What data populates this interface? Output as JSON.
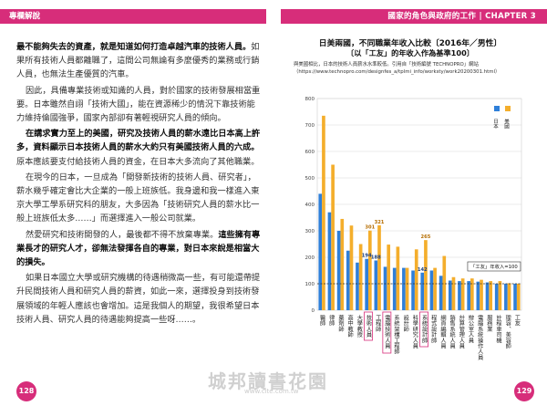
{
  "left_page": {
    "header": "專欄解說",
    "page_number": "128",
    "paragraphs": [
      {
        "indent": false,
        "segments": [
          {
            "bold": true,
            "text": "最不能夠失去的資產，就是知道如何打造卓越汽車的技術人員。"
          },
          {
            "bold": false,
            "text": "如果所有技術人員都離職了，這間公司無論有多麼優秀的業務或行銷人員，也無法生產優質的汽車。"
          }
        ]
      },
      {
        "indent": true,
        "segments": [
          {
            "bold": false,
            "text": "因此，具備專業技術或知識的人員，對於國家的技術發展相當重要。日本雖然自詡「技術大國」，能在資源稀少的情況下靠技術能力維持倫國強爭，國家內部卻有著輕視研究人員的傾向。"
          }
        ]
      },
      {
        "indent": true,
        "segments": [
          {
            "bold": true,
            "text": "在講求實力至上的美國，研究及技術人員的薪水遠比日本高上許多，資料顯示日本技術人員的薪水大約只有美國技術人員的六成。"
          },
          {
            "bold": false,
            "text": "原本應該要支付給技術人員的資金，在日本大多流向了其他職業。"
          }
        ]
      },
      {
        "indent": true,
        "segments": [
          {
            "bold": false,
            "text": "在現今的日本，一旦成為「開發新技術的技術人員、研究者」，薪水幾乎確定會比大企業的一般上班族低。我身邊和我一樣進入東京大學工學系研究科的朋友，大多因為「技術研究人員的薪水比一般上班族低太多……」而選擇進入一般公司就業。"
          }
        ]
      },
      {
        "indent": true,
        "segments": [
          {
            "bold": false,
            "text": "然愛研究和技術開發的人，最後都不得不放棄專業。"
          },
          {
            "bold": true,
            "text": "這些擁有專業長才的研究人才，卻無法發揮各自的專業，對日本來說是相當大的損失。"
          }
        ]
      },
      {
        "indent": true,
        "segments": [
          {
            "bold": false,
            "text": "如果日本國立大學或研究機構的待遇稍微高一些，有可能還帶提升民間技術人員和研究人員的薪資，如此一來，選擇投身到技術發展領域的年輕人應該也會增加。這是我個人的期望，我很希望日本技術人員、研究人員的待遇能夠提高一些呀……。"
          }
        ]
      }
    ]
  },
  "right_page": {
    "header": "國家的角色與政府的工作 | CHAPTER 3",
    "page_number": "129",
    "chart_title": "日美兩國，不同職業年收入比較〔2016年／男性〕",
    "chart_subtitle": "〔以「工友」的年收入作為基準100〕",
    "note_line1": "與美國相比，日本的技術人員薪水水準較低。引用自「技術編號 TECHNOPRO」網站",
    "note_line2": "（https://www.technopro.com/designfes_a/tplmi_info/worksty/work20200301.html）",
    "watermark": "城邦讀書花園",
    "watermark_url": "www.cite.com.tw"
  },
  "chart_data": {
    "type": "bar",
    "title": "日美兩國，不同職業年收入比較〔2016年／男性〕",
    "subtitle": "〔以「工友」的年收入作為基準100〕",
    "ylim": [
      0,
      800
    ],
    "yticks": [
      0,
      100,
      200,
      300,
      400,
      500,
      600,
      700,
      800
    ],
    "legend": {
      "position": "top-right",
      "items": [
        "日本",
        "美國"
      ]
    },
    "colors": {
      "japan": "#2f7fd9",
      "usa": "#f4ae2c"
    },
    "reference_label": "「工友」年收入=100",
    "categories": [
      "醫師",
      "律師",
      "藥劑師",
      "高中教師",
      "大學教授",
      "技術人員",
      "工程師",
      "電腦技術人員",
      "系統架構工程師",
      "設計師",
      "科學研究人員",
      "系統設計師",
      "程式設計師",
      "網頁編輯人員",
      "銷售系統人員",
      "計算管理人員",
      "辦公室人員",
      "電腦系統操作人員",
      "服務業",
      "計程車司機",
      "理容、美容師",
      "工友"
    ],
    "categories_vertical": [
      "醫師",
      "律師",
      "藥劑師",
      "高中教師",
      "大學教授",
      "技術人員",
      "工程師",
      "電腦技術人員",
      "系統架構工程師",
      "設計師",
      "科學研究人員",
      "系統設計師",
      "程式設計師",
      "網頁編輯人員",
      "銷售系統人員",
      "計算管理人員",
      "辦公室人員",
      "電腦系統操作人員",
      "服務業",
      "計程車司機",
      "理容、美容師",
      "工友"
    ],
    "series": [
      {
        "name": "日本",
        "values": [
          440,
          370,
          300,
          225,
          180,
          194,
          188,
          164,
          160,
          160,
          150,
          142,
          150,
          130,
          112,
          110,
          110,
          108,
          105,
          100,
          100,
          100
        ]
      },
      {
        "name": "美國",
        "values": [
          735,
          550,
          345,
          320,
          250,
          301,
          321,
          248,
          240,
          160,
          230,
          265,
          160,
          205,
          125,
          120,
          120,
          115,
          110,
          110,
          102,
          100
        ]
      }
    ],
    "data_labels": [
      {
        "index": 5,
        "series": "日本",
        "value": "194"
      },
      {
        "index": 5,
        "series": "美國",
        "value": "301"
      },
      {
        "index": 6,
        "series": "日本",
        "value": "188"
      },
      {
        "index": 6,
        "series": "美國",
        "value": "321"
      },
      {
        "index": 11,
        "series": "日本",
        "value": "142"
      },
      {
        "index": 11,
        "series": "美國",
        "value": "265"
      }
    ],
    "highlighted_categories": [
      5,
      7,
      11
    ]
  }
}
